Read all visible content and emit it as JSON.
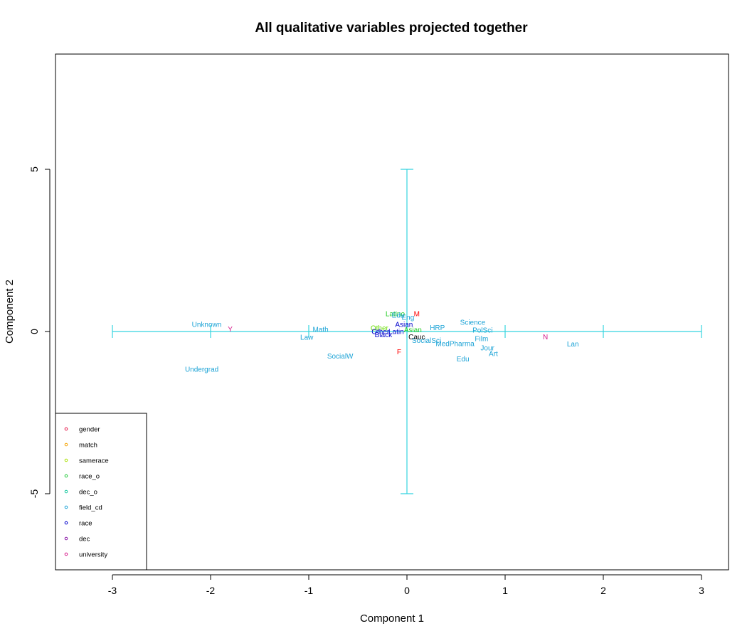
{
  "chart_data": {
    "type": "scatter",
    "title": "All qualitative variables projected together",
    "xlabel": "Component 1",
    "ylabel": "Component 2",
    "xlim": [
      -3.2,
      3.2
    ],
    "ylim": [
      -7.3,
      8.5
    ],
    "xticks": [
      -3,
      -2,
      -1,
      0,
      1,
      2,
      3
    ],
    "yticks": [
      -5,
      0,
      5
    ],
    "grid": false,
    "legend_position": "bottom-left",
    "legend": [
      {
        "name": "gender",
        "color": "#e6194b"
      },
      {
        "name": "match",
        "color": "#f5a300"
      },
      {
        "name": "samerace",
        "color": "#a8e000"
      },
      {
        "name": "race_o",
        "color": "#22c93a"
      },
      {
        "name": "dec_o",
        "color": "#19c9a0"
      },
      {
        "name": "field_cd",
        "color": "#1ca3d6"
      },
      {
        "name": "race",
        "color": "#0000cc"
      },
      {
        "name": "dec",
        "color": "#8b1aa8"
      },
      {
        "name": "university",
        "color": "#d6198a"
      }
    ],
    "crosshair": {
      "color": "#35d4e0",
      "x_range": [
        -3,
        3
      ],
      "x_ticks": [
        -3,
        -2,
        -1,
        0,
        1,
        2,
        3
      ],
      "y_range": [
        -5,
        5
      ],
      "y_ticks": [
        -5,
        5
      ]
    },
    "points": [
      {
        "label": "M",
        "x": 0.1,
        "y": 0.55,
        "series": "gender",
        "color": "#ff0000"
      },
      {
        "label": "F",
        "x": -0.08,
        "y": -0.62,
        "series": "gender",
        "color": "#ff0000"
      },
      {
        "label": "Other",
        "x": -0.28,
        "y": 0.11,
        "series": "race_o",
        "color": "#66dd00"
      },
      {
        "label": "Latino",
        "x": -0.12,
        "y": 0.55,
        "series": "race_o",
        "color": "#22cc22"
      },
      {
        "label": "Asian",
        "x": 0.06,
        "y": 0.05,
        "series": "race_o",
        "color": "#22cc22"
      },
      {
        "label": "Edu",
        "x": -0.09,
        "y": 0.5,
        "series": "field_cd",
        "color": "#1ca3d6"
      },
      {
        "label": "Eng",
        "x": 0.01,
        "y": 0.44,
        "series": "field_cd",
        "color": "#1ca3d6"
      },
      {
        "label": "Unknown",
        "x": -2.04,
        "y": 0.22,
        "series": "field_cd",
        "color": "#1ca3d6"
      },
      {
        "label": "Math",
        "x": -0.88,
        "y": 0.07,
        "series": "field_cd",
        "color": "#1ca3d6"
      },
      {
        "label": "Law",
        "x": -1.02,
        "y": -0.18,
        "series": "field_cd",
        "color": "#1ca3d6"
      },
      {
        "label": "SocialW",
        "x": -0.68,
        "y": -0.76,
        "series": "field_cd",
        "color": "#1ca3d6"
      },
      {
        "label": "Undergrad",
        "x": -2.09,
        "y": -1.16,
        "series": "field_cd",
        "color": "#1ca3d6"
      },
      {
        "label": "HRP",
        "x": 0.31,
        "y": 0.12,
        "series": "field_cd",
        "color": "#1ca3d6"
      },
      {
        "label": "Science",
        "x": 0.67,
        "y": 0.28,
        "series": "field_cd",
        "color": "#1ca3d6"
      },
      {
        "label": "PolSci",
        "x": 0.77,
        "y": 0.04,
        "series": "field_cd",
        "color": "#1ca3d6"
      },
      {
        "label": "SocialSci",
        "x": 0.2,
        "y": -0.27,
        "series": "field_cd",
        "color": "#1ca3d6"
      },
      {
        "label": "MedPharma",
        "x": 0.49,
        "y": -0.37,
        "series": "field_cd",
        "color": "#1ca3d6"
      },
      {
        "label": "Film",
        "x": 0.76,
        "y": -0.22,
        "series": "field_cd",
        "color": "#1ca3d6"
      },
      {
        "label": "Jour",
        "x": 0.82,
        "y": -0.5,
        "series": "field_cd",
        "color": "#1ca3d6"
      },
      {
        "label": "Art",
        "x": 0.88,
        "y": -0.68,
        "series": "field_cd",
        "color": "#1ca3d6"
      },
      {
        "label": "Edu",
        "x": 0.57,
        "y": -0.84,
        "series": "field_cd",
        "color": "#1ca3d6"
      },
      {
        "label": "Lan",
        "x": 1.69,
        "y": -0.38,
        "series": "field_cd",
        "color": "#1ca3d6"
      },
      {
        "label": "Asian",
        "x": -0.03,
        "y": 0.22,
        "series": "race",
        "color": "#0000cc"
      },
      {
        "label": "Other",
        "x": -0.27,
        "y": 0.0,
        "series": "race",
        "color": "#0000cc"
      },
      {
        "label": "Latin",
        "x": -0.11,
        "y": 0.0,
        "series": "race",
        "color": "#0000cc"
      },
      {
        "label": "Black",
        "x": -0.24,
        "y": -0.1,
        "series": "race",
        "color": "#0000cc"
      },
      {
        "label": "Cauc",
        "x": 0.1,
        "y": -0.16,
        "series": "race",
        "color": "#000000"
      },
      {
        "label": "Y",
        "x": -1.8,
        "y": 0.08,
        "series": "university",
        "color": "#d6198a"
      },
      {
        "label": "N",
        "x": 1.41,
        "y": -0.16,
        "series": "university",
        "color": "#d6198a"
      }
    ]
  }
}
